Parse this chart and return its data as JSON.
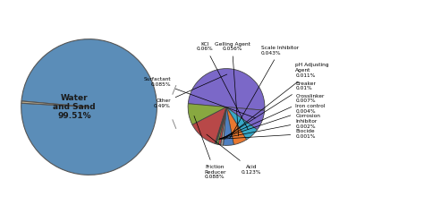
{
  "main_values": [
    99.51,
    0.49
  ],
  "main_colors": [
    "#5B8DB8",
    "#C0B090"
  ],
  "left_label": "Water\nand Sand\n99.51%",
  "detail_labels": [
    "Other",
    "Surfactant",
    "KCl",
    "Gelling Agent",
    "Scale Inhibitor",
    "pH Adjusting\nAgent",
    "Breaker",
    "Crosslinker",
    "Iron control",
    "Corrosion\nInhibitor",
    "Biocide",
    "Acid",
    "Friction\nReducer"
  ],
  "detail_values": [
    0.49,
    0.085,
    0.06,
    0.056,
    0.043,
    0.011,
    0.01,
    0.007,
    0.004,
    0.002,
    0.001,
    0.123,
    0.088
  ],
  "detail_colors": [
    "#7B68C8",
    "#7B68C8",
    "#38A8C8",
    "#E87830",
    "#5080C0",
    "#A0A0A0",
    "#D04040",
    "#90C040",
    "#38A858",
    "#70C8E8",
    "#9060B0",
    "#B84848",
    "#88A840"
  ],
  "detail_label_texts": [
    "Other\n0.49%",
    "Surfactant\n0.085%",
    "KCl\n0.06%",
    "Gelling Agent\n0.056%",
    "Scale Inhibitor\n0.043%",
    "pH Adjusting\nAgent\n0.011%",
    "Breaker\n0.01%",
    "Crosslinker\n0.007%",
    "Iron control\n0.004%",
    "Corrosion\nInhibitor\n0.002%",
    "Biocide\n0.001%",
    "Acid\n0.123%",
    "Friction\nReducer\n0.088%"
  ],
  "figsize": [
    4.74,
    2.39
  ],
  "dpi": 100
}
